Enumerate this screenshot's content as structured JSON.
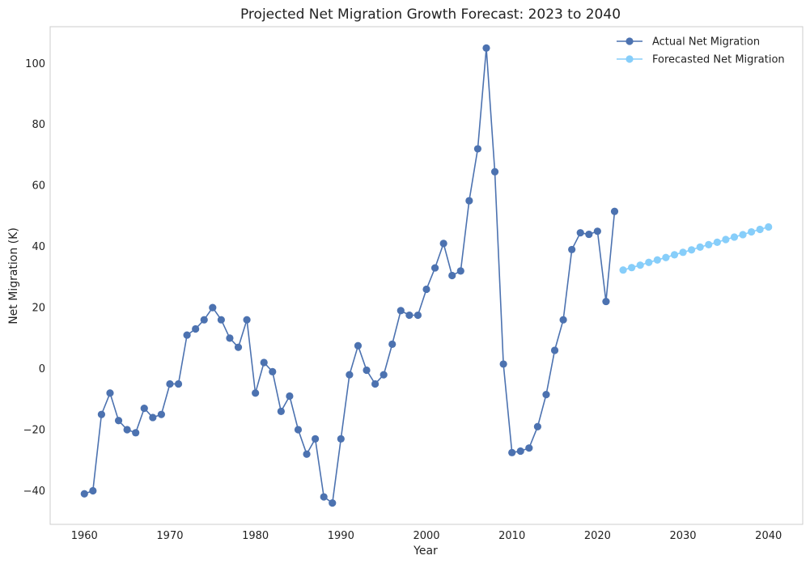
{
  "chart_data": {
    "type": "line",
    "title": "Projected Net Migration Growth Forecast: 2023 to 2040",
    "xlabel": "Year",
    "ylabel": "Net Migration (K)",
    "xlim": [
      1956,
      2044
    ],
    "ylim": [
      -51,
      112
    ],
    "xticks": [
      1960,
      1970,
      1980,
      1990,
      2000,
      2010,
      2020,
      2030,
      2040
    ],
    "yticks": [
      -40,
      -20,
      0,
      20,
      40,
      60,
      80,
      100
    ],
    "grid": false,
    "legend_position": "top-right",
    "series": [
      {
        "name": "Actual Net Migration",
        "color": "#4c72b0",
        "marker": "circle",
        "x": [
          1960,
          1961,
          1962,
          1963,
          1964,
          1965,
          1966,
          1967,
          1968,
          1969,
          1970,
          1971,
          1972,
          1973,
          1974,
          1975,
          1976,
          1977,
          1978,
          1979,
          1980,
          1981,
          1982,
          1983,
          1984,
          1985,
          1986,
          1987,
          1988,
          1989,
          1990,
          1991,
          1992,
          1993,
          1994,
          1995,
          1996,
          1997,
          1998,
          1999,
          2000,
          2001,
          2002,
          2003,
          2004,
          2005,
          2006,
          2007,
          2008,
          2009,
          2010,
          2011,
          2012,
          2013,
          2014,
          2015,
          2016,
          2017,
          2018,
          2019,
          2020,
          2021,
          2022
        ],
        "y": [
          -41,
          -40,
          -15,
          -8,
          -17,
          -20,
          -21,
          -13,
          -16,
          -15,
          -5,
          -5,
          11,
          13,
          16,
          20,
          16,
          10,
          7,
          16,
          -8,
          2,
          -1,
          -14,
          -9,
          -20,
          -28,
          -23,
          -42,
          -44,
          -23,
          -2,
          7.5,
          -0.5,
          -5,
          -2,
          8,
          19,
          17.5,
          17.5,
          26,
          33,
          41,
          30.5,
          32,
          55,
          72,
          105,
          64.5,
          1.5,
          -27.5,
          -27,
          -26,
          -19,
          -8.5,
          6,
          16,
          39,
          44.5,
          44,
          45,
          22,
          51.5
        ]
      },
      {
        "name": "Forecasted Net Migration",
        "color": "#87cefa",
        "marker": "circle",
        "x": [
          2023,
          2024,
          2025,
          2026,
          2027,
          2028,
          2029,
          2030,
          2031,
          2032,
          2033,
          2034,
          2035,
          2036,
          2037,
          2038,
          2039,
          2040
        ],
        "y": [
          32.3,
          33.1,
          33.9,
          34.8,
          35.6,
          36.4,
          37.3,
          38.1,
          38.9,
          39.8,
          40.6,
          41.4,
          42.3,
          43.1,
          43.9,
          44.8,
          45.6,
          46.4
        ]
      }
    ]
  }
}
